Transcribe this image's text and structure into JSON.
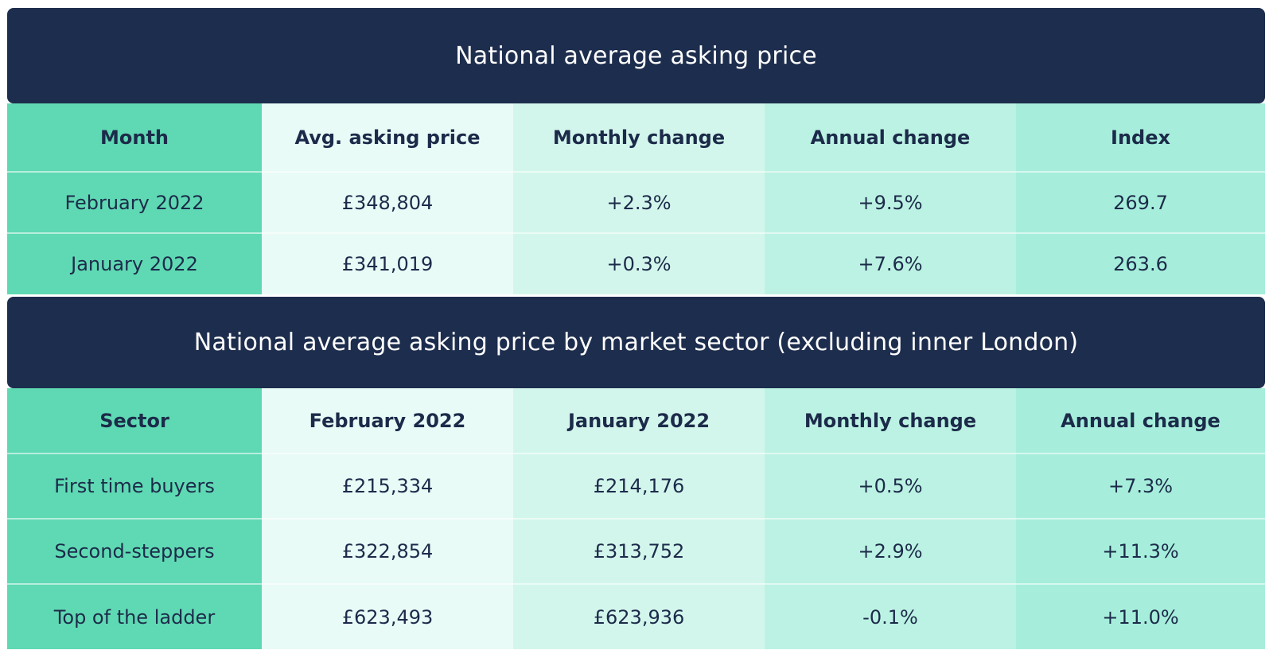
{
  "table1": {
    "title": "National average asking price",
    "headers": [
      "Month",
      "Avg. asking price",
      "Monthly change",
      "Annual change",
      "Index"
    ],
    "rows": [
      [
        "February 2022",
        "£348,804",
        "+2.3%",
        "+9.5%",
        "269.7"
      ],
      [
        "January 2022",
        "£341,019",
        "+0.3%",
        "+7.6%",
        "263.6"
      ]
    ]
  },
  "table2": {
    "title": "National average asking price by market sector (excluding inner London)",
    "headers": [
      "Sector",
      "February 2022",
      "January 2022",
      "Monthly change",
      "Annual change"
    ],
    "rows": [
      [
        "First time buyers",
        "£215,334",
        "£214,176",
        "+0.5%",
        "+7.3%"
      ],
      [
        "Second-steppers",
        "£322,854",
        "£313,752",
        "+2.9%",
        "+11.3%"
      ],
      [
        "Top of the ladder",
        "£623,493",
        "£623,936",
        "-0.1%",
        "+11.0%"
      ]
    ]
  },
  "colors": {
    "header_bg": "#1d2d4d",
    "col1": "#5fd9b3",
    "col2": "#e9fbf7",
    "col3": "#d3f6ec",
    "col4": "#bcf2e3",
    "col5": "#a6eedb"
  }
}
